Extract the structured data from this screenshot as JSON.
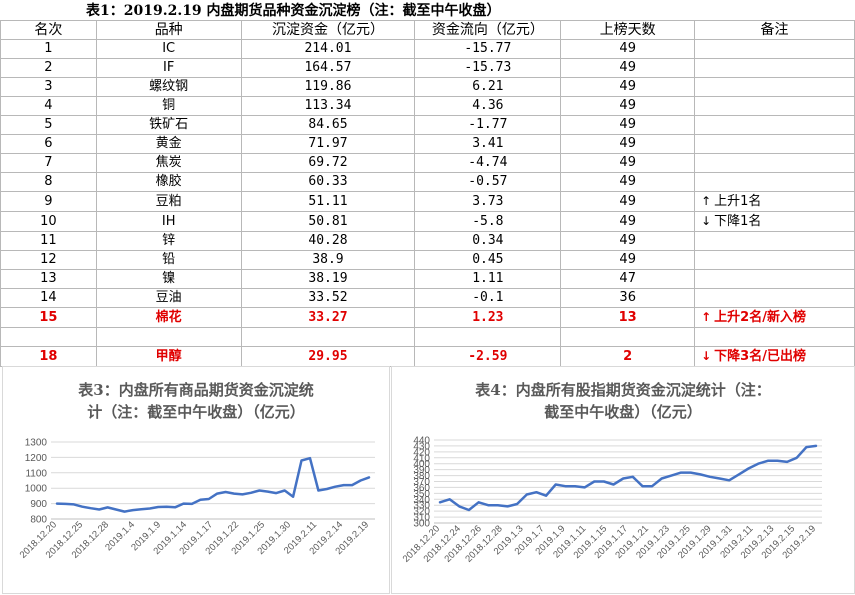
{
  "table": {
    "title": "表1：2019.2.19 内盘期货品种资金沉淀榜（注：截至中午收盘）",
    "headers": [
      "名次",
      "品种",
      "沉淀资金（亿元）",
      "资金流向（亿元）",
      "上榜天数",
      "备注"
    ],
    "rows": [
      {
        "rank": "1",
        "name": "IC",
        "amount": "214.01",
        "flow": "-15.77",
        "days": "49",
        "note": "",
        "arrow": ""
      },
      {
        "rank": "2",
        "name": "IF",
        "amount": "164.57",
        "flow": "-15.73",
        "days": "49",
        "note": "",
        "arrow": ""
      },
      {
        "rank": "3",
        "name": "螺纹钢",
        "amount": "119.86",
        "flow": "6.21",
        "days": "49",
        "note": "",
        "arrow": ""
      },
      {
        "rank": "4",
        "name": "铜",
        "amount": "113.34",
        "flow": "4.36",
        "days": "49",
        "note": "",
        "arrow": ""
      },
      {
        "rank": "5",
        "name": "铁矿石",
        "amount": "84.65",
        "flow": "-1.77",
        "days": "49",
        "note": "",
        "arrow": ""
      },
      {
        "rank": "6",
        "name": "黄金",
        "amount": "71.97",
        "flow": "3.41",
        "days": "49",
        "note": "",
        "arrow": ""
      },
      {
        "rank": "7",
        "name": "焦炭",
        "amount": "69.72",
        "flow": "-4.74",
        "days": "49",
        "note": "",
        "arrow": ""
      },
      {
        "rank": "8",
        "name": "橡胶",
        "amount": "60.33",
        "flow": "-0.57",
        "days": "49",
        "note": "",
        "arrow": ""
      },
      {
        "rank": "9",
        "name": "豆粕",
        "amount": "51.11",
        "flow": "3.73",
        "days": "49",
        "note": "上升1名",
        "arrow": "↑"
      },
      {
        "rank": "10",
        "name": "IH",
        "amount": "50.81",
        "flow": "-5.8",
        "days": "49",
        "note": "下降1名",
        "arrow": "↓"
      },
      {
        "rank": "11",
        "name": "锌",
        "amount": "40.28",
        "flow": "0.34",
        "days": "49",
        "note": "",
        "arrow": ""
      },
      {
        "rank": "12",
        "name": "铅",
        "amount": "38.9",
        "flow": "0.45",
        "days": "49",
        "note": "",
        "arrow": ""
      },
      {
        "rank": "13",
        "name": "镍",
        "amount": "38.19",
        "flow": "1.11",
        "days": "47",
        "note": "",
        "arrow": ""
      },
      {
        "rank": "14",
        "name": "豆油",
        "amount": "33.52",
        "flow": "-0.1",
        "days": "36",
        "note": "",
        "arrow": ""
      },
      {
        "rank": "15",
        "name": "棉花",
        "amount": "33.27",
        "flow": "1.23",
        "days": "13",
        "note": "上升2名/新入榜",
        "arrow": "↑",
        "red": true
      },
      {
        "rank": "",
        "name": "",
        "amount": "",
        "flow": "",
        "days": "",
        "note": "",
        "arrow": "",
        "blank": true
      },
      {
        "rank": "18",
        "name": "甲醇",
        "amount": "29.95",
        "flow": "-2.59",
        "days": "2",
        "note": "下降3名/已出榜",
        "arrow": "↓",
        "red": true
      }
    ]
  },
  "chart_data": [
    {
      "type": "line",
      "title": "表3：内盘所有商品期货资金沉淀统计（注：截至中午收盘）（亿元）",
      "title_lines": [
        "表3：内盘所有商品期货资金沉淀统",
        "计（注：截至中午收盘）（亿元）"
      ],
      "xlabel": "",
      "ylabel": "",
      "ylim": [
        800,
        1300
      ],
      "yticks": [
        800,
        900,
        1000,
        1100,
        1200,
        1300
      ],
      "xtick_labels": [
        "2018.12.20",
        "2018.12.25",
        "2018.12.28",
        "2019.1.4",
        "2019.1.9",
        "2019.1.14",
        "2019.1.17",
        "2019.1.22",
        "2019.1.25",
        "2019.1.30",
        "2019.2.11",
        "2019.2.14",
        "2019.2.19"
      ],
      "grid": true,
      "line_color": "#4472c4",
      "values": [
        900,
        898,
        895,
        880,
        870,
        862,
        875,
        862,
        848,
        858,
        863,
        868,
        878,
        880,
        876,
        900,
        898,
        925,
        930,
        965,
        975,
        965,
        960,
        970,
        985,
        978,
        968,
        985,
        945,
        1180,
        1195,
        985,
        995,
        1010,
        1020,
        1020,
        1050,
        1070
      ]
    },
    {
      "type": "line",
      "title": "表4：内盘所有股指期货资金沉淀统计（注：截至中午收盘）（亿元）",
      "title_lines": [
        "表4：内盘所有股指期货资金沉淀统计（注：",
        "截至中午收盘）（亿元）"
      ],
      "xlabel": "",
      "ylabel": "",
      "ylim": [
        300,
        440
      ],
      "yticks": [
        300,
        310,
        320,
        330,
        340,
        350,
        360,
        370,
        380,
        390,
        400,
        410,
        420,
        430,
        440
      ],
      "xtick_labels": [
        "2018.12.20",
        "2018.12.24",
        "2018.12.26",
        "2018.12.28",
        "2019.1.3",
        "2019.1.7",
        "2019.1.9",
        "2019.1.11",
        "2019.1.15",
        "2019.1.17",
        "2019.1.21",
        "2019.1.23",
        "2019.1.25",
        "2019.1.29",
        "2019.1.31",
        "2019.2.11",
        "2019.2.13",
        "2019.2.15",
        "2019.2.19"
      ],
      "grid": true,
      "line_color": "#4472c4",
      "values": [
        335,
        340,
        328,
        322,
        335,
        330,
        330,
        328,
        332,
        348,
        352,
        346,
        365,
        362,
        362,
        360,
        370,
        370,
        365,
        375,
        378,
        362,
        362,
        375,
        380,
        385,
        385,
        382,
        378,
        375,
        372,
        382,
        392,
        400,
        405,
        405,
        403,
        410,
        428,
        430
      ]
    }
  ]
}
